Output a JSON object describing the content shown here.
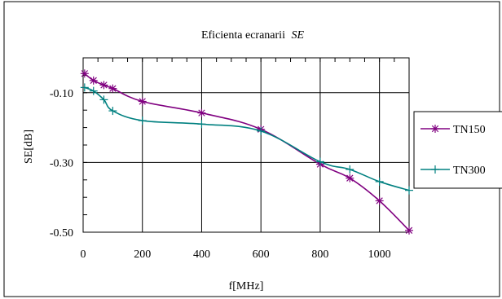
{
  "chart_data": {
    "type": "line",
    "title": "Eficienta ecranarii",
    "title_symbol": "SE",
    "xlabel": "f[MHz]",
    "ylabel": "SE[dB]",
    "xlim": [
      0,
      1100
    ],
    "ylim": [
      -0.5,
      0.0
    ],
    "x_ticks": [
      0,
      200,
      400,
      600,
      800,
      1000
    ],
    "x_tick_labels": [
      "0",
      "200",
      "400",
      "600",
      "800",
      "1000"
    ],
    "y_ticks": [
      -0.1,
      -0.3,
      -0.5
    ],
    "y_tick_labels": [
      "-0.10",
      "-0.30",
      "-0.50"
    ],
    "grid": true,
    "legend_position": "right",
    "series": [
      {
        "name": "TN150",
        "color": "#800080",
        "marker": "asterisk",
        "x": [
          5,
          35,
          70,
          100,
          200,
          400,
          600,
          800,
          900,
          1000,
          1100
        ],
        "y": [
          -0.045,
          -0.065,
          -0.078,
          -0.088,
          -0.125,
          -0.158,
          -0.205,
          -0.305,
          -0.345,
          -0.41,
          -0.495
        ]
      },
      {
        "name": "TN300",
        "color": "#008080",
        "marker": "plus",
        "x": [
          5,
          35,
          70,
          100,
          200,
          400,
          600,
          800,
          900,
          1000,
          1100
        ],
        "y": [
          -0.085,
          -0.095,
          -0.12,
          -0.152,
          -0.18,
          -0.19,
          -0.21,
          -0.298,
          -0.32,
          -0.355,
          -0.38
        ]
      }
    ]
  }
}
